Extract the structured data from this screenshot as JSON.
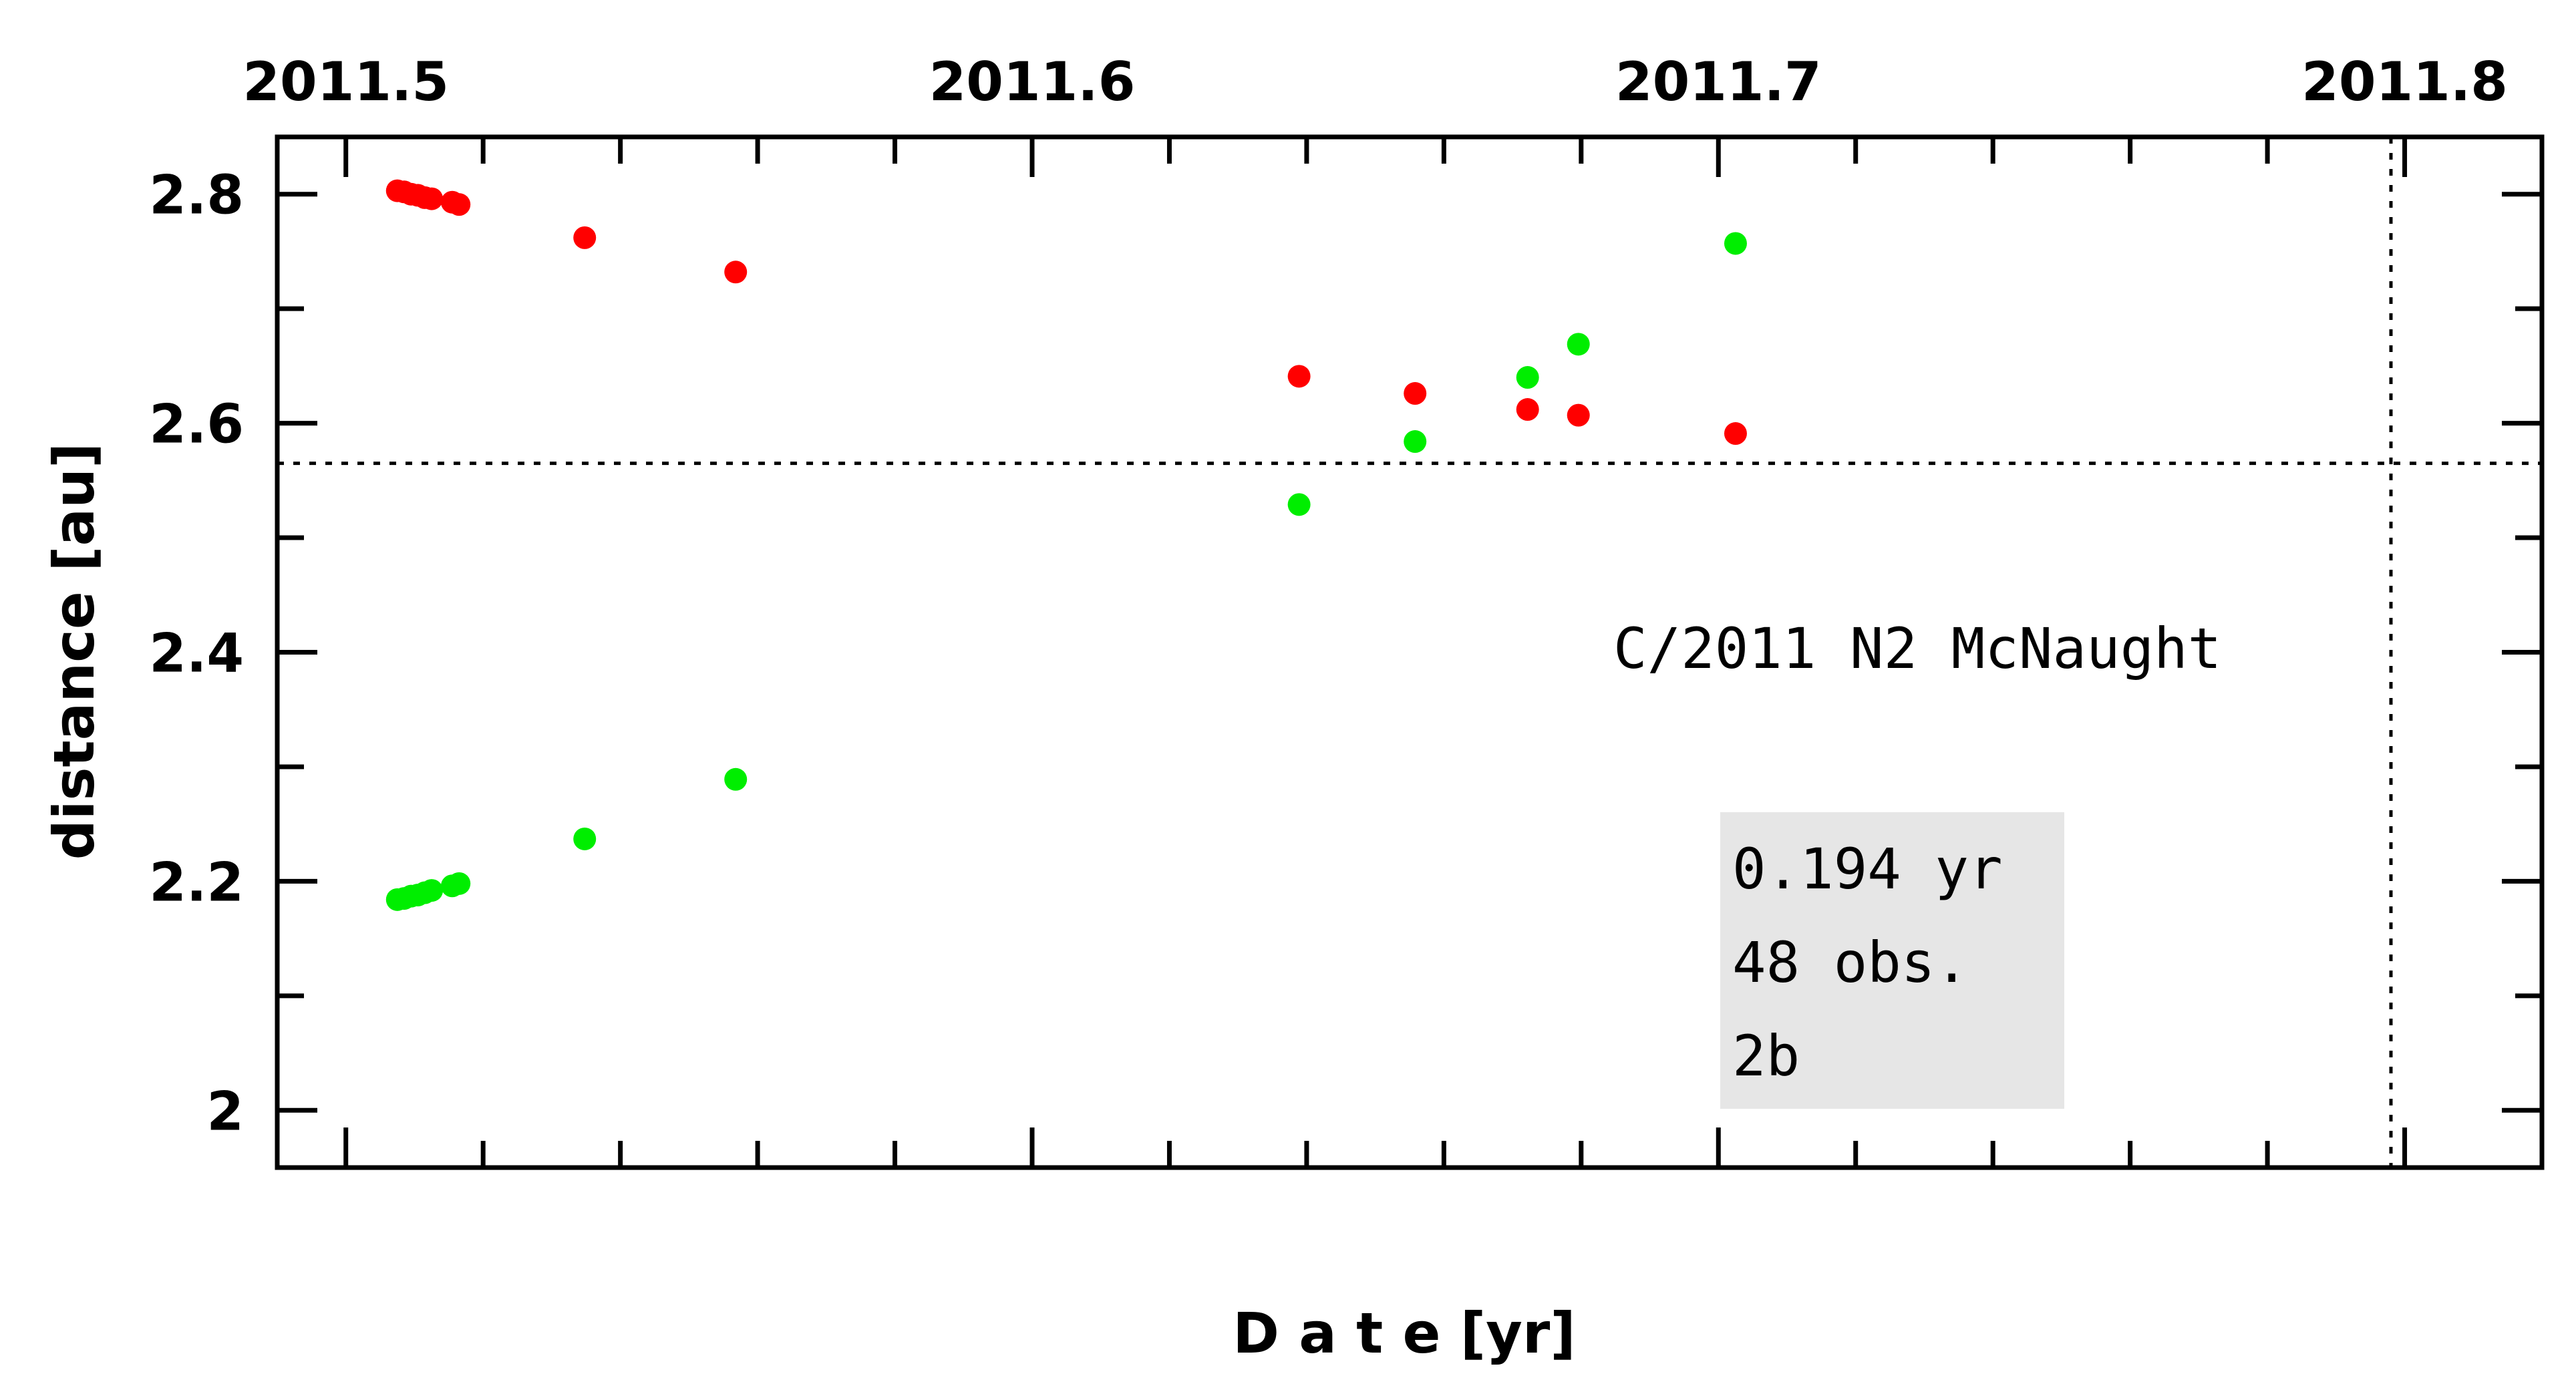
{
  "chart_data": {
    "type": "scatter",
    "title": "",
    "xlabel": "D a t e [yr]",
    "ylabel": "distance [au]",
    "xlim": [
      2011.49,
      2011.82
    ],
    "ylim": [
      1.95,
      2.85
    ],
    "x_ticks": [
      2011.5,
      2011.6,
      2011.7,
      2011.8
    ],
    "x_tick_labels": [
      "2011.5",
      "2011.6",
      "2011.7",
      "2011.8"
    ],
    "x_minor_step": 0.02,
    "y_ticks": [
      2.0,
      2.2,
      2.4,
      2.6,
      2.8
    ],
    "y_tick_labels": [
      "2",
      "2.2",
      "2.4",
      "2.6",
      "2.8"
    ],
    "y_minor_step": 0.1,
    "ref_lines": {
      "horizontal_y": 2.565,
      "vertical_x": 2011.798
    },
    "annotation_title": "C/2011 N2 McNaught",
    "info_box": [
      "0.194 yr",
      "48 obs.",
      "2b"
    ],
    "series": [
      {
        "color": "#ff0000",
        "points": [
          {
            "x": 2011.5075,
            "y": 2.803
          },
          {
            "x": 2011.5085,
            "y": 2.802
          },
          {
            "x": 2011.5095,
            "y": 2.8
          },
          {
            "x": 2011.5105,
            "y": 2.799
          },
          {
            "x": 2011.5115,
            "y": 2.797
          },
          {
            "x": 2011.5125,
            "y": 2.796
          },
          {
            "x": 2011.5155,
            "y": 2.793
          },
          {
            "x": 2011.5165,
            "y": 2.791
          },
          {
            "x": 2011.5348,
            "y": 2.762
          },
          {
            "x": 2011.5568,
            "y": 2.732
          },
          {
            "x": 2011.6389,
            "y": 2.641
          },
          {
            "x": 2011.6558,
            "y": 2.626
          },
          {
            "x": 2011.6722,
            "y": 2.612
          },
          {
            "x": 2011.6796,
            "y": 2.607
          },
          {
            "x": 2011.7025,
            "y": 2.591
          }
        ]
      },
      {
        "color": "#00ee00",
        "points": [
          {
            "x": 2011.5075,
            "y": 2.184
          },
          {
            "x": 2011.5085,
            "y": 2.185
          },
          {
            "x": 2011.5095,
            "y": 2.187
          },
          {
            "x": 2011.5105,
            "y": 2.188
          },
          {
            "x": 2011.5115,
            "y": 2.19
          },
          {
            "x": 2011.5125,
            "y": 2.192
          },
          {
            "x": 2011.5155,
            "y": 2.196
          },
          {
            "x": 2011.5165,
            "y": 2.198
          },
          {
            "x": 2011.5348,
            "y": 2.237
          },
          {
            "x": 2011.5568,
            "y": 2.289
          },
          {
            "x": 2011.6389,
            "y": 2.529
          },
          {
            "x": 2011.6558,
            "y": 2.584
          },
          {
            "x": 2011.6722,
            "y": 2.64
          },
          {
            "x": 2011.6796,
            "y": 2.669
          },
          {
            "x": 2011.7025,
            "y": 2.757
          }
        ]
      }
    ]
  }
}
